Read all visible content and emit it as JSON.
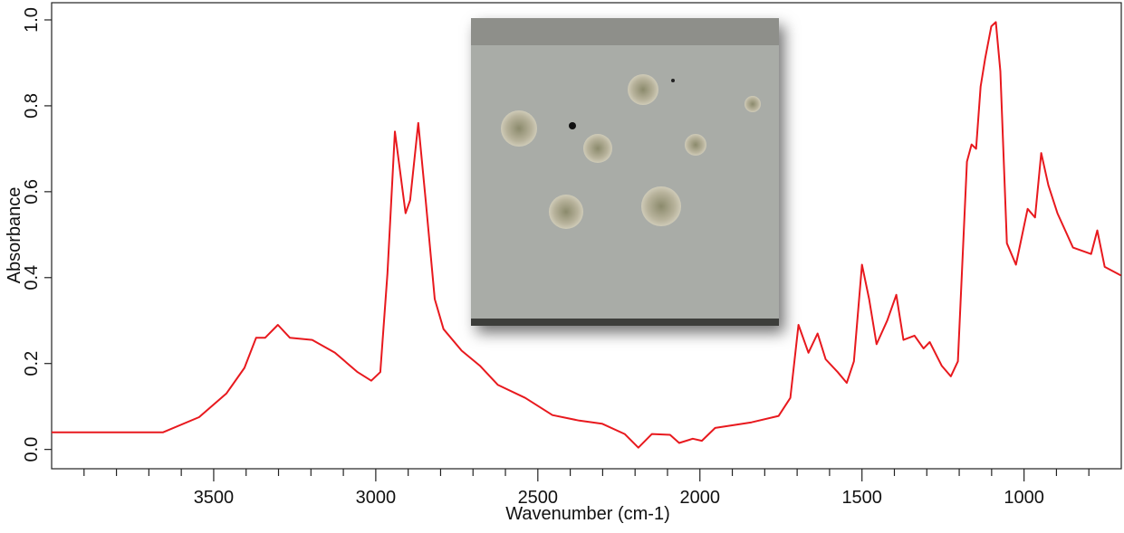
{
  "chart_data": {
    "type": "line",
    "xlabel": "Wavenumber (cm-1)",
    "ylabel": "Absorbance",
    "color": "#e8191e",
    "xlim": [
      4000,
      700
    ],
    "ylim": [
      -0.045,
      1.04
    ],
    "xticks": [
      3500,
      3000,
      2500,
      2000,
      1500,
      1000
    ],
    "xminorticks": [
      3900,
      3800,
      3700,
      3600,
      3400,
      3300,
      3200,
      3100,
      2900,
      2800,
      2700,
      2600,
      2400,
      2300,
      2200,
      2100,
      1900,
      1800,
      1700,
      1600,
      1400,
      1300,
      1200,
      1100,
      900,
      800
    ],
    "yticks": [
      {
        "value": 0,
        "label": "0.0"
      },
      0.2,
      0.4,
      0.6,
      0.8,
      {
        "value": 1,
        "label": "1.0"
      }
    ],
    "x": [
      4000,
      3656,
      3545,
      3461,
      3405,
      3369,
      3341,
      3302,
      3265,
      3196,
      3126,
      3056,
      3014,
      2986,
      2964,
      2941,
      2908,
      2894,
      2869,
      2846,
      2818,
      2791,
      2735,
      2679,
      2623,
      2539,
      2455,
      2372,
      2302,
      2232,
      2190,
      2148,
      2092,
      2064,
      2022,
      1994,
      1953,
      1841,
      1757,
      1721,
      1696,
      1665,
      1637,
      1612,
      1575,
      1547,
      1525,
      1500,
      1478,
      1455,
      1422,
      1394,
      1372,
      1338,
      1310,
      1291,
      1254,
      1226,
      1204,
      1176,
      1162,
      1148,
      1134,
      1120,
      1101,
      1087,
      1073,
      1053,
      1025,
      989,
      966,
      947,
      925,
      897,
      849,
      793,
      774,
      751,
      701
    ],
    "values": [
      0.04,
      0.04,
      0.075,
      0.13,
      0.19,
      0.26,
      0.26,
      0.29,
      0.26,
      0.255,
      0.225,
      0.18,
      0.16,
      0.18,
      0.41,
      0.74,
      0.55,
      0.58,
      0.76,
      0.58,
      0.35,
      0.28,
      0.23,
      0.195,
      0.15,
      0.12,
      0.08,
      0.067,
      0.06,
      0.036,
      0.004,
      0.036,
      0.034,
      0.015,
      0.025,
      0.02,
      0.05,
      0.063,
      0.078,
      0.12,
      0.29,
      0.225,
      0.27,
      0.21,
      0.18,
      0.155,
      0.205,
      0.43,
      0.35,
      0.245,
      0.3,
      0.36,
      0.255,
      0.265,
      0.235,
      0.25,
      0.195,
      0.17,
      0.205,
      0.67,
      0.71,
      0.7,
      0.845,
      0.91,
      0.985,
      0.995,
      0.88,
      0.48,
      0.43,
      0.56,
      0.54,
      0.69,
      0.615,
      0.55,
      0.47,
      0.455,
      0.51,
      0.425,
      0.405
    ]
  }
}
